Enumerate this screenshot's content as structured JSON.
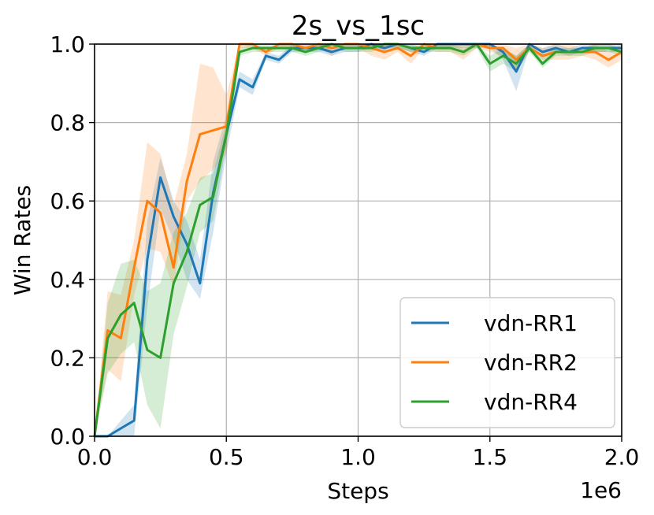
{
  "chart_data": {
    "type": "line",
    "title": "2s_vs_1sc",
    "xlabel": "Steps",
    "ylabel": "Win Rates",
    "x_offset_text": "1e6",
    "xlim": [
      0,
      2.0
    ],
    "ylim": [
      0,
      1.0
    ],
    "xticks": [
      0.0,
      0.5,
      1.0,
      1.5,
      2.0
    ],
    "xtick_labels": [
      "0.0",
      "0.5",
      "1.0",
      "1.5",
      "2.0"
    ],
    "yticks": [
      0.0,
      0.2,
      0.4,
      0.6,
      0.8,
      1.0
    ],
    "ytick_labels": [
      "0.0",
      "0.2",
      "0.4",
      "0.6",
      "0.8",
      "1.0"
    ],
    "grid": true,
    "legend_position": "lower-right",
    "x": [
      0.0,
      0.05,
      0.1,
      0.15,
      0.2,
      0.25,
      0.3,
      0.35,
      0.4,
      0.45,
      0.5,
      0.55,
      0.6,
      0.65,
      0.7,
      0.75,
      0.8,
      0.85,
      0.9,
      0.95,
      1.0,
      1.05,
      1.1,
      1.15,
      1.2,
      1.25,
      1.3,
      1.35,
      1.4,
      1.45,
      1.5,
      1.55,
      1.6,
      1.65,
      1.7,
      1.75,
      1.8,
      1.85,
      1.9,
      1.95,
      2.0
    ],
    "series": [
      {
        "name": "vdn-RR1",
        "color": "#1f77b4",
        "values": [
          0.0,
          0.0,
          0.02,
          0.04,
          0.45,
          0.66,
          0.56,
          0.49,
          0.39,
          0.62,
          0.77,
          0.91,
          0.89,
          0.97,
          0.96,
          0.99,
          0.99,
          0.99,
          0.98,
          0.99,
          0.99,
          1.0,
          0.99,
          1.0,
          0.99,
          0.98,
          1.0,
          1.0,
          1.0,
          1.0,
          1.0,
          0.98,
          0.93,
          1.0,
          0.98,
          0.99,
          0.98,
          0.99,
          0.99,
          0.99,
          0.99
        ],
        "lower": [
          0.0,
          0.0,
          0.0,
          0.0,
          0.33,
          0.58,
          0.5,
          0.4,
          0.35,
          0.52,
          0.72,
          0.89,
          0.87,
          0.96,
          0.95,
          0.98,
          0.98,
          0.98,
          0.97,
          0.98,
          0.98,
          0.99,
          0.98,
          0.99,
          0.98,
          0.97,
          0.99,
          0.99,
          0.99,
          0.99,
          0.99,
          0.96,
          0.88,
          0.99,
          0.97,
          0.98,
          0.97,
          0.98,
          0.98,
          0.98,
          0.98
        ],
        "upper": [
          0.0,
          0.0,
          0.04,
          0.08,
          0.55,
          0.71,
          0.6,
          0.55,
          0.45,
          0.7,
          0.82,
          0.93,
          0.91,
          0.98,
          0.97,
          1.0,
          1.0,
          1.0,
          0.99,
          1.0,
          1.0,
          1.0,
          1.0,
          1.0,
          1.0,
          0.99,
          1.0,
          1.0,
          1.0,
          1.0,
          1.0,
          0.99,
          0.97,
          1.0,
          0.99,
          1.0,
          0.99,
          1.0,
          1.0,
          1.0,
          1.0
        ]
      },
      {
        "name": "vdn-RR2",
        "color": "#ff7f0e",
        "values": [
          0.0,
          0.27,
          0.25,
          0.43,
          0.6,
          0.57,
          0.43,
          0.65,
          0.77,
          0.78,
          0.79,
          1.0,
          1.0,
          0.98,
          1.0,
          1.0,
          0.99,
          1.0,
          0.99,
          1.0,
          1.0,
          0.99,
          0.98,
          0.99,
          0.97,
          1.0,
          0.99,
          0.99,
          0.98,
          1.0,
          0.99,
          0.99,
          0.96,
          0.99,
          0.97,
          0.98,
          0.98,
          0.98,
          0.98,
          0.96,
          0.98
        ],
        "lower": [
          0.0,
          0.17,
          0.14,
          0.36,
          0.48,
          0.47,
          0.38,
          0.6,
          0.65,
          0.68,
          0.72,
          0.99,
          0.99,
          0.97,
          0.99,
          0.99,
          0.98,
          0.99,
          0.97,
          0.99,
          0.99,
          0.97,
          0.96,
          0.98,
          0.95,
          0.99,
          0.98,
          0.98,
          0.96,
          0.99,
          0.98,
          0.97,
          0.93,
          0.98,
          0.96,
          0.96,
          0.96,
          0.97,
          0.96,
          0.94,
          0.96
        ],
        "upper": [
          0.0,
          0.37,
          0.36,
          0.5,
          0.75,
          0.72,
          0.59,
          0.72,
          0.95,
          0.94,
          0.87,
          1.0,
          1.0,
          0.99,
          1.0,
          1.0,
          1.0,
          1.0,
          1.0,
          1.0,
          1.0,
          1.0,
          1.0,
          1.0,
          0.99,
          1.0,
          1.0,
          1.0,
          1.0,
          1.0,
          1.0,
          1.0,
          0.99,
          1.0,
          0.99,
          1.0,
          1.0,
          0.99,
          1.0,
          0.98,
          1.0
        ]
      },
      {
        "name": "vdn-RR4",
        "color": "#2ca02c",
        "values": [
          0.0,
          0.25,
          0.31,
          0.34,
          0.22,
          0.2,
          0.39,
          0.47,
          0.59,
          0.61,
          0.77,
          0.98,
          0.99,
          0.99,
          0.99,
          0.99,
          0.98,
          0.99,
          1.0,
          0.99,
          0.99,
          0.99,
          1.0,
          1.0,
          0.99,
          0.99,
          0.99,
          0.99,
          0.98,
          1.0,
          0.95,
          0.97,
          0.95,
          0.99,
          0.95,
          0.98,
          0.98,
          0.98,
          0.99,
          0.99,
          0.98
        ],
        "lower": [
          0.0,
          0.16,
          0.21,
          0.24,
          0.08,
          0.02,
          0.26,
          0.38,
          0.52,
          0.55,
          0.74,
          0.97,
          0.98,
          0.98,
          0.98,
          0.98,
          0.97,
          0.98,
          0.99,
          0.98,
          0.98,
          0.98,
          0.99,
          0.99,
          0.98,
          0.98,
          0.98,
          0.98,
          0.97,
          0.99,
          0.93,
          0.95,
          0.93,
          0.98,
          0.94,
          0.97,
          0.97,
          0.97,
          0.98,
          0.98,
          0.97
        ],
        "upper": [
          0.0,
          0.34,
          0.44,
          0.45,
          0.37,
          0.39,
          0.52,
          0.57,
          0.66,
          0.67,
          0.8,
          0.99,
          1.0,
          1.0,
          1.0,
          1.0,
          0.99,
          1.0,
          1.0,
          1.0,
          1.0,
          1.0,
          1.0,
          1.0,
          1.0,
          1.0,
          1.0,
          1.0,
          0.99,
          1.0,
          0.97,
          0.99,
          0.97,
          1.0,
          0.97,
          0.99,
          0.99,
          0.99,
          1.0,
          1.0,
          0.99
        ]
      }
    ]
  }
}
